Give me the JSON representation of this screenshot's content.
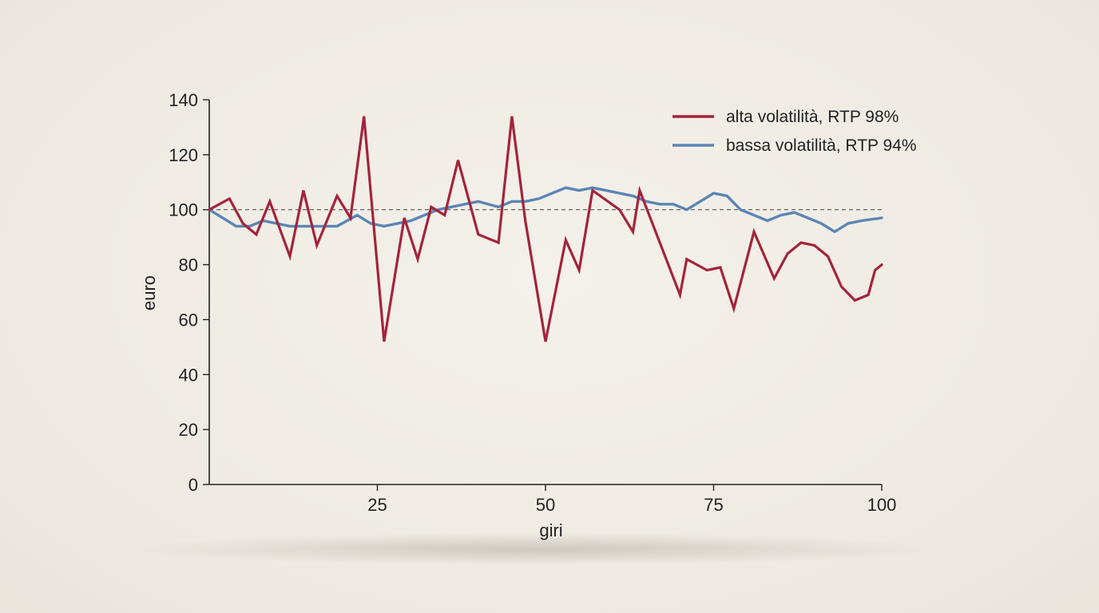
{
  "chart_data": {
    "type": "line",
    "title": "",
    "xlabel": "giri",
    "ylabel": "euro",
    "xlim": [
      0,
      100
    ],
    "ylim": [
      0,
      140
    ],
    "xticks": [
      25,
      50,
      75,
      100
    ],
    "yticks": [
      0,
      20,
      40,
      60,
      80,
      100,
      120,
      140
    ],
    "reference_line": {
      "y": 100,
      "style": "dashed"
    },
    "grid": false,
    "legend_position": "top-right",
    "series": [
      {
        "name": "alta volatilità, RTP 98%",
        "color": "#a3243b",
        "x": [
          0,
          3,
          5,
          7,
          9,
          12,
          14,
          16,
          19,
          21,
          23,
          26,
          29,
          31,
          33,
          35,
          37,
          40,
          43,
          45,
          47,
          50,
          53,
          55,
          57,
          61,
          63,
          64,
          70,
          71,
          74,
          76,
          78,
          81,
          84,
          86,
          88,
          90,
          92,
          94,
          96,
          98,
          99,
          100
        ],
        "y": [
          100,
          104,
          95,
          91,
          103,
          83,
          107,
          87,
          105,
          97,
          134,
          52,
          97,
          82,
          101,
          98,
          118,
          91,
          88,
          134,
          96,
          52,
          89,
          78,
          107,
          100,
          92,
          107,
          69,
          82,
          78,
          79,
          64,
          92,
          75,
          84,
          88,
          87,
          83,
          72,
          67,
          69,
          78,
          80
        ]
      },
      {
        "name": "bassa volatilità, RTP 94%",
        "color": "#5b85b5",
        "x": [
          0,
          2,
          4,
          6,
          8,
          10,
          12,
          15,
          17,
          19,
          22,
          24,
          26,
          28,
          30,
          32,
          34,
          36,
          38,
          40,
          43,
          45,
          47,
          49,
          51,
          53,
          55,
          57,
          59,
          61,
          63,
          65,
          67,
          69,
          71,
          73,
          75,
          77,
          79,
          81,
          83,
          85,
          87,
          89,
          91,
          93,
          95,
          97,
          100
        ],
        "y": [
          100,
          97,
          94,
          94,
          96,
          95,
          94,
          94,
          94,
          94,
          98,
          95,
          94,
          95,
          96,
          98,
          100,
          101,
          102,
          103,
          101,
          103,
          103,
          104,
          106,
          108,
          107,
          108,
          107,
          106,
          105,
          103,
          102,
          102,
          100,
          103,
          106,
          105,
          100,
          98,
          96,
          98,
          99,
          97,
          95,
          92,
          95,
          96,
          97
        ]
      }
    ]
  }
}
